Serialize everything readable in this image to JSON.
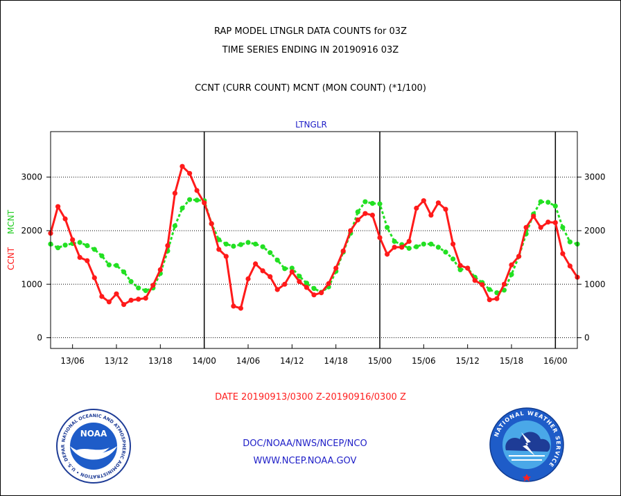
{
  "header": {
    "title_line1": "RAP MODEL LTNGLR DATA COUNTS for 03Z",
    "title_line2": "TIME SERIES ENDING IN 20190916 03Z",
    "subtitle": "CCNT (CURR COUNT) MCNT (MON COUNT) (*1/100)"
  },
  "footer": {
    "date_range": "DATE 20190913/0300 Z-20190916/0300 Z",
    "credit_line1": "DOC/NOAA/NWS/NCEP/NCO",
    "credit_line2": "WWW.NCEP.NOAA.GOV"
  },
  "logos": {
    "left": {
      "name": "NOAA",
      "ring_text": "NATIONAL OCEANIC AND ATMOSPHERIC ADMINISTRATION • U.S. DEPARTMENT OF COMMERCE",
      "colors": {
        "ring": "#ffffff",
        "center": "#1e5cc8",
        "text": "#1e3c96"
      }
    },
    "right": {
      "ring_text": "NATIONAL WEATHER SERVICE",
      "colors": {
        "ring": "#1e5cc8",
        "center": "#4aa8e8",
        "text": "#ffffff"
      }
    }
  },
  "chart_data": {
    "type": "line",
    "panel_label": "LTNGLR",
    "ylabel_left": "CCNT",
    "ylabel_mid": "MCNT",
    "ylim": [
      -200,
      3850
    ],
    "yticks": [
      0,
      1000,
      2000,
      3000
    ],
    "ytick_labels": [
      "0",
      "1000",
      "2000",
      "3000"
    ],
    "xticks": [
      3,
      9,
      15,
      21,
      27,
      33,
      39,
      45,
      51,
      57,
      63,
      69
    ],
    "xtick_labels": [
      "13/06",
      "13/12",
      "13/18",
      "14/00",
      "14/06",
      "14/12",
      "14/18",
      "15/00",
      "15/06",
      "15/12",
      "15/18",
      "16/00"
    ],
    "xrange_hours": [
      0,
      72
    ],
    "x_units": "hours since 20190913/0000 Z",
    "day_boundaries": [
      21,
      45,
      69
    ],
    "grid": "horizontal dotted at y ticks",
    "colors": {
      "CCNT": "#ff1a1a",
      "MCNT": "#22e022",
      "panel_label": "#2020c8",
      "axis": "#000000"
    },
    "series": [
      {
        "name": "CCNT",
        "values": [
          1950,
          2450,
          2220,
          1830,
          1500,
          1440,
          1120,
          770,
          670,
          820,
          620,
          700,
          720,
          740,
          980,
          1270,
          1720,
          2700,
          3200,
          3070,
          2750,
          2520,
          2130,
          1650,
          1520,
          590,
          550,
          1100,
          1380,
          1250,
          1140,
          900,
          1000,
          1230,
          1050,
          940,
          800,
          840,
          1010,
          1300,
          1620,
          2000,
          2200,
          2320,
          2290,
          1870,
          1560,
          1690,
          1690,
          1800,
          2420,
          2560,
          2290,
          2520,
          2400,
          1750,
          1350,
          1300,
          1070,
          990,
          710,
          730,
          1000,
          1360,
          1520,
          2060,
          2270,
          2060,
          2160,
          2150,
          1570,
          1340,
          1130
        ]
      },
      {
        "name": "MCNT",
        "values": [
          1750,
          1680,
          1730,
          1760,
          1780,
          1720,
          1650,
          1530,
          1360,
          1350,
          1230,
          1050,
          930,
          880,
          930,
          1200,
          1620,
          2090,
          2420,
          2580,
          2570,
          2560,
          2130,
          1830,
          1750,
          1710,
          1740,
          1780,
          1750,
          1700,
          1590,
          1450,
          1290,
          1300,
          1150,
          1020,
          920,
          850,
          950,
          1240,
          1600,
          1950,
          2350,
          2540,
          2510,
          2500,
          2060,
          1800,
          1740,
          1670,
          1700,
          1750,
          1750,
          1690,
          1600,
          1470,
          1270,
          1300,
          1130,
          1030,
          900,
          840,
          890,
          1180,
          1520,
          1940,
          2310,
          2540,
          2530,
          2460,
          2060,
          1790,
          1750
        ]
      }
    ]
  }
}
